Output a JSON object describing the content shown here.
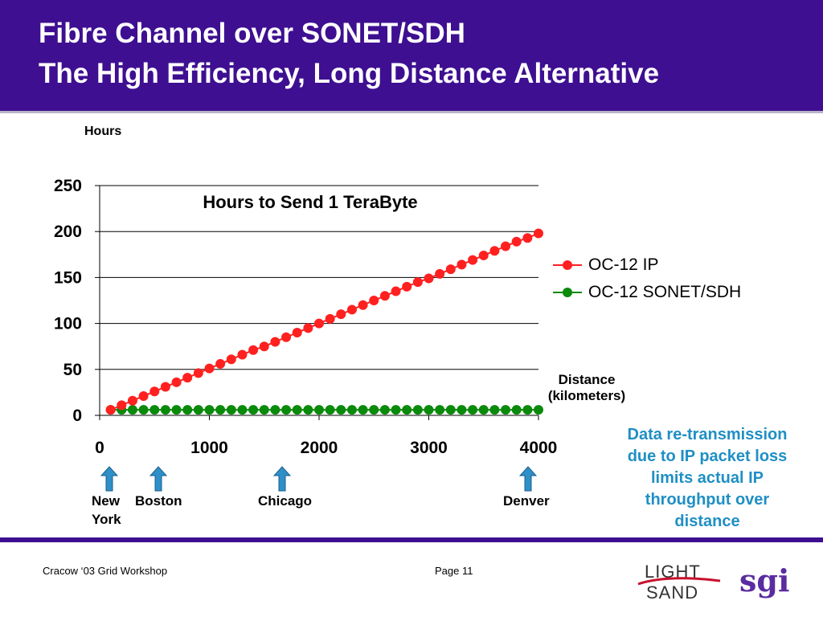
{
  "slide": {
    "title_line1": "Fibre Channel over SONET/SDH",
    "title_line2": "The High Efficiency, Long Distance Alternative"
  },
  "chart_data": {
    "type": "line",
    "title": "Hours to Send 1 TeraByte",
    "ylabel": "Hours",
    "xlabel": "Distance\n(kilometers)",
    "xlabel_line1": "Distance",
    "xlabel_line2": "(kilometers)",
    "xlim": [
      0,
      4000
    ],
    "ylim": [
      0,
      250
    ],
    "x_ticks": [
      "0",
      "1000",
      "2000",
      "3000",
      "4000"
    ],
    "y_ticks": [
      "0",
      "50",
      "100",
      "150",
      "200",
      "250"
    ],
    "grid": "horizontal",
    "legend_position": "right",
    "x": [
      100,
      200,
      300,
      400,
      500,
      600,
      700,
      800,
      900,
      1000,
      1100,
      1200,
      1300,
      1400,
      1500,
      1600,
      1700,
      1800,
      1900,
      2000,
      2100,
      2200,
      2300,
      2400,
      2500,
      2600,
      2700,
      2800,
      2900,
      3000,
      3100,
      3200,
      3300,
      3400,
      3500,
      3600,
      3700,
      3800,
      3900,
      4000
    ],
    "series": [
      {
        "name": "OC-12 IP",
        "color": "#ff2020",
        "values": [
          6,
          11,
          16,
          21,
          26,
          31,
          36,
          41,
          46,
          51,
          56,
          61,
          66,
          71,
          75,
          80,
          85,
          90,
          95,
          100,
          105,
          110,
          115,
          120,
          125,
          130,
          135,
          140,
          145,
          149,
          154,
          159,
          164,
          169,
          174,
          179,
          184,
          189,
          193,
          198
        ]
      },
      {
        "name": "OC-12 SONET/SDH",
        "color": "#0a8a0a",
        "values": [
          6,
          6,
          6,
          6,
          6,
          6,
          6,
          6,
          6,
          6,
          6,
          6,
          6,
          6,
          6,
          6,
          6,
          6,
          6,
          6,
          6,
          6,
          6,
          6,
          6,
          6,
          6,
          6,
          6,
          6,
          6,
          6,
          6,
          6,
          6,
          6,
          6,
          6,
          6,
          6
        ]
      }
    ]
  },
  "cities": {
    "new_york_line1": "New",
    "new_york_line2": "York",
    "boston": "Boston",
    "chicago": "Chicago",
    "denver": "Denver"
  },
  "note": "Data re-transmission due to IP packet loss limits actual IP throughput over distance",
  "footer": {
    "left": "Cracow ‘03 Grid Workshop",
    "page": "Page 11"
  },
  "logos": {
    "lightsand_line1": "LIGHT",
    "lightsand_line2": "SAND",
    "sgi": "sgi"
  },
  "colors": {
    "header": "#3e0f91",
    "note": "#1f8fc4",
    "arrow": "#2f8fc8"
  },
  "icons": [
    "up-arrow-icon"
  ]
}
